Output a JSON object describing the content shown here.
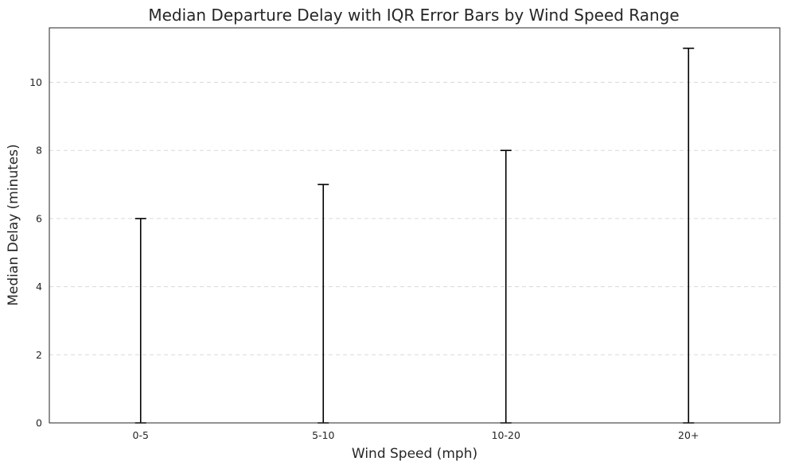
{
  "chart_data": {
    "type": "bar",
    "title": "Median Departure Delay with IQR Error Bars by Wind Speed Range",
    "xlabel": "Wind Speed (mph)",
    "ylabel": "Median Delay (minutes)",
    "categories": [
      "0-5",
      "5-10",
      "10-20",
      "20+"
    ],
    "values": [
      0,
      0,
      0,
      0
    ],
    "error_upper": [
      6,
      7,
      8,
      11
    ],
    "error_lower": [
      0,
      0,
      0,
      0
    ],
    "ylim": [
      0,
      11.6
    ],
    "yticks": [
      0,
      2,
      4,
      6,
      8,
      10
    ],
    "grid": "y-dashed",
    "colors": {
      "bar": "#d0d0d0",
      "error": "#000000",
      "grid": "#d9d9d9",
      "text": "#262626"
    }
  }
}
